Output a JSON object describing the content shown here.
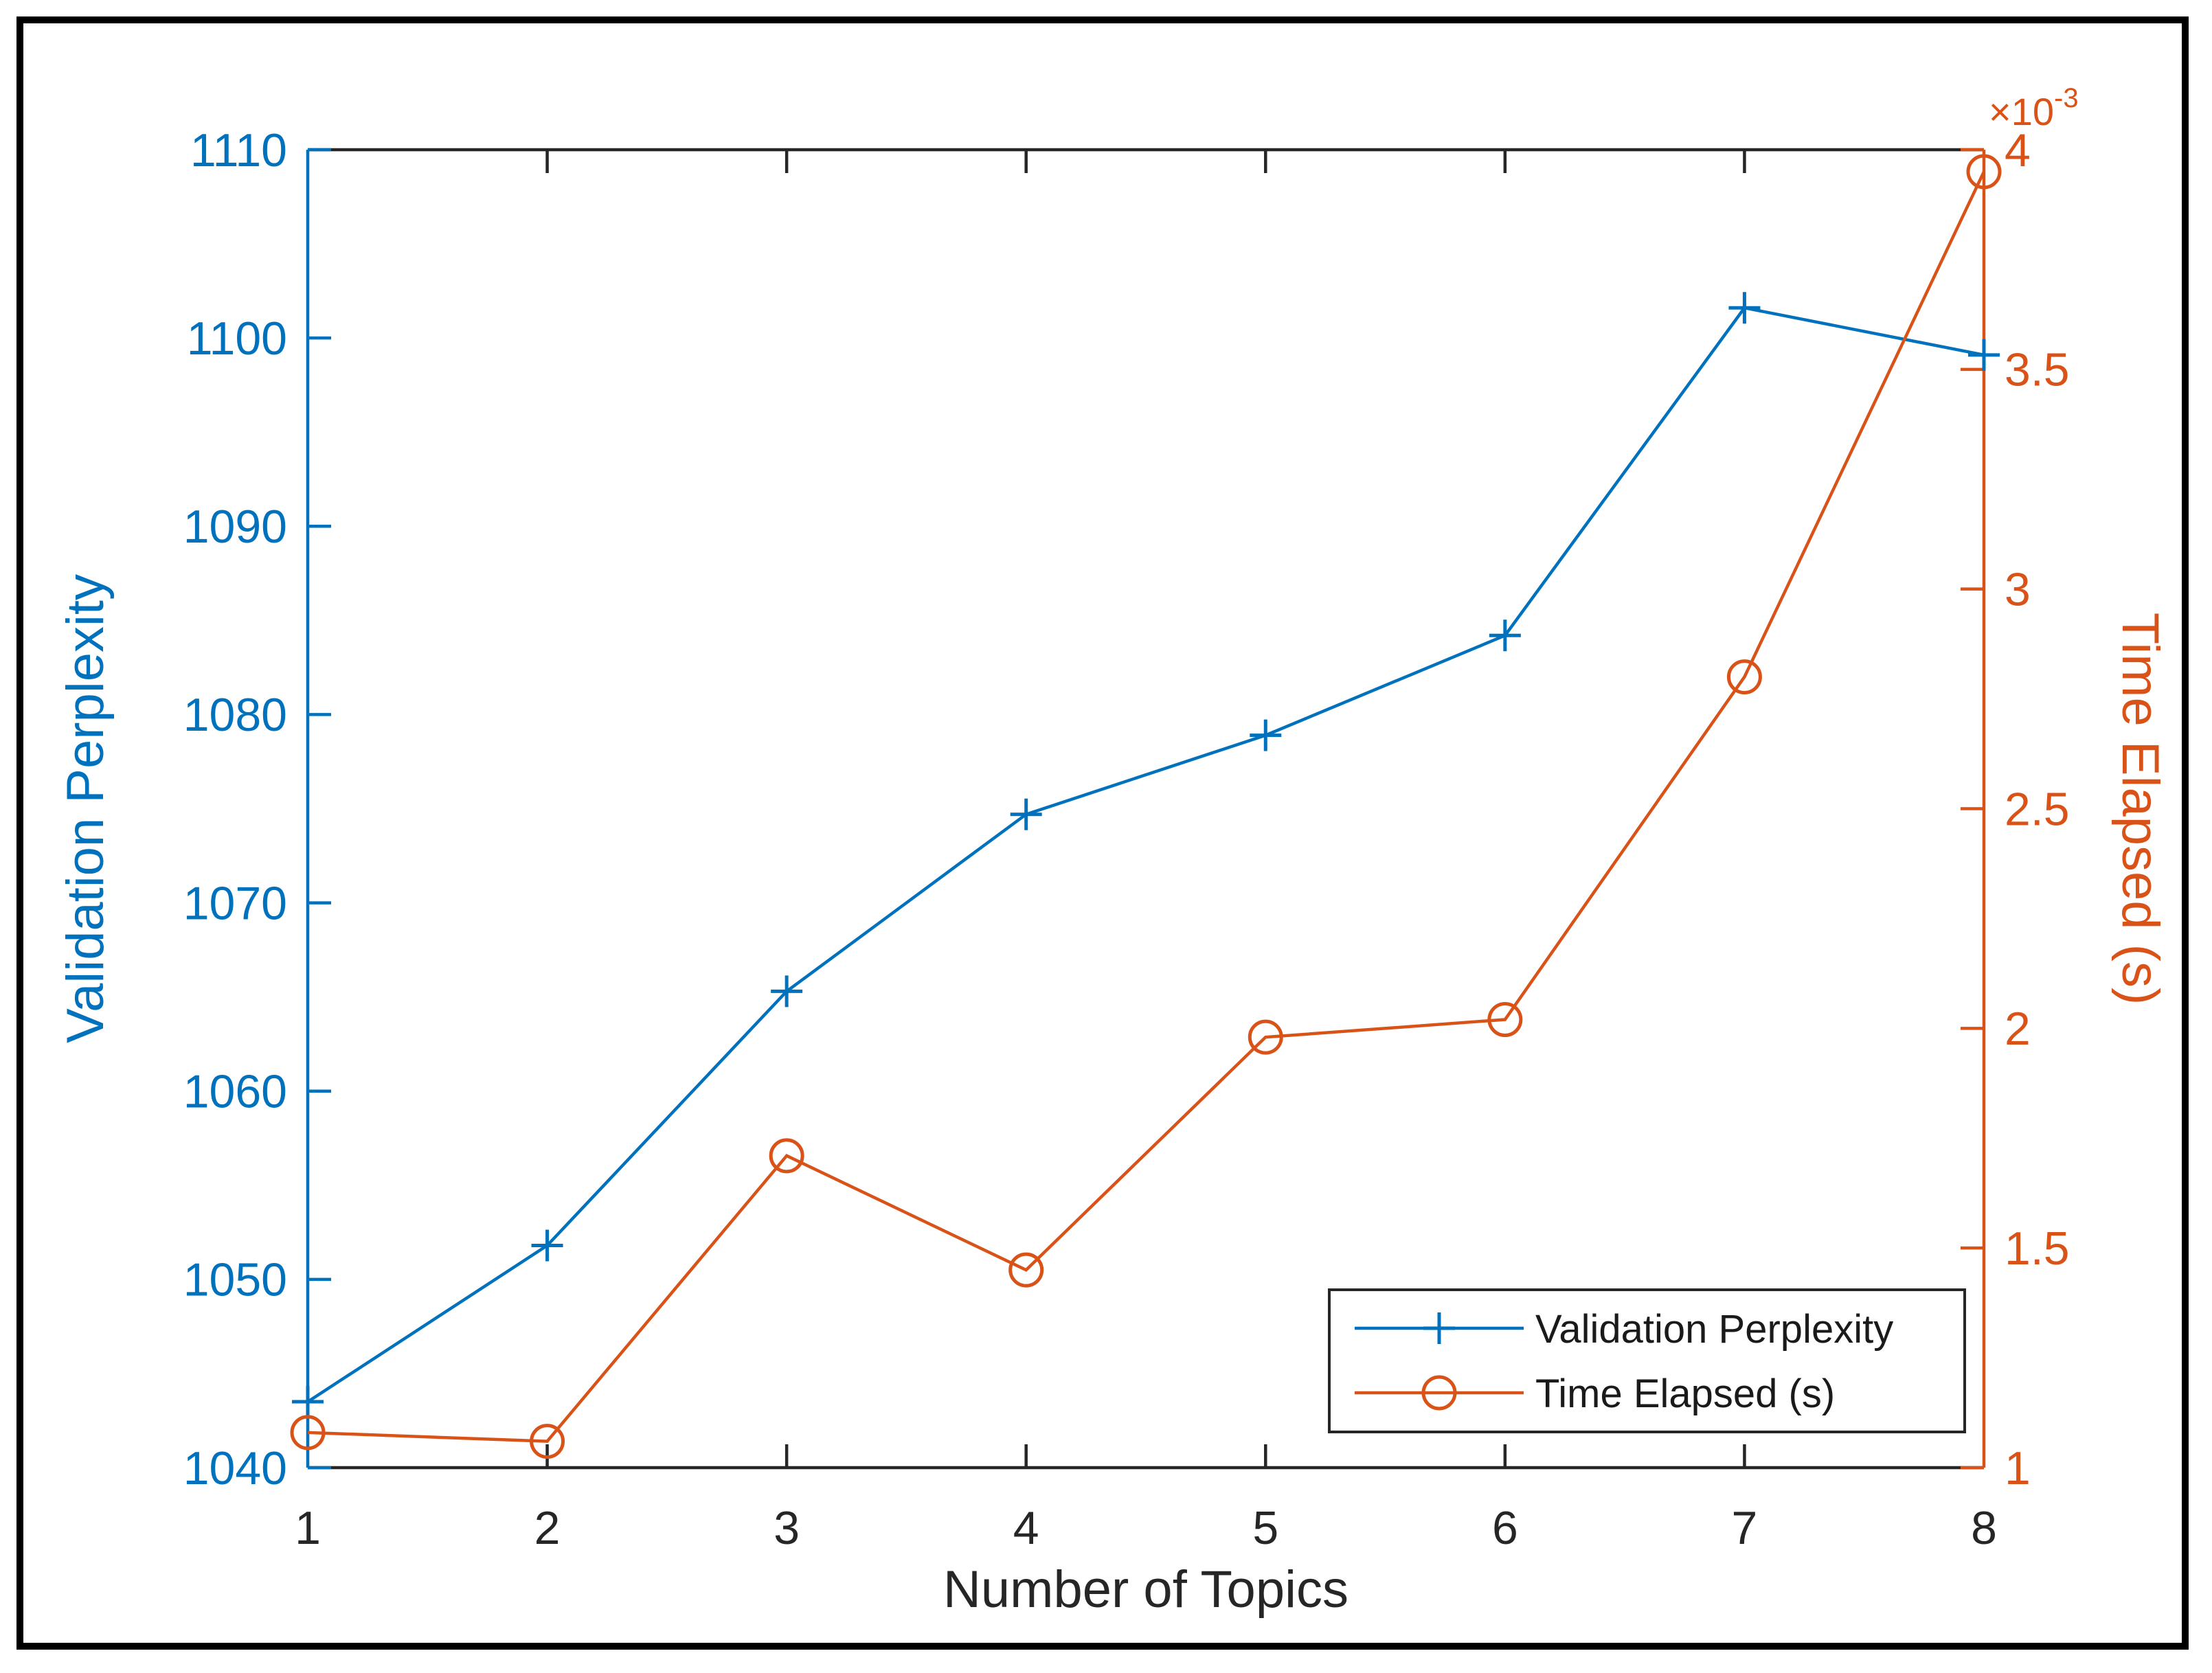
{
  "figure": {
    "background": "#ffffff",
    "frame_color": "#000000",
    "axis_line_color": "#262626",
    "axis_text_color": "#262626"
  },
  "chart_data": {
    "type": "line",
    "title": "",
    "xlabel": "Number of Topics",
    "x": [
      1,
      2,
      3,
      4,
      5,
      6,
      7,
      8
    ],
    "x_ticks": [
      "1",
      "2",
      "3",
      "4",
      "5",
      "6",
      "7",
      "8"
    ],
    "xlim": [
      1,
      8
    ],
    "grid": false,
    "axes": {
      "left": {
        "label": "Validation Perplexity",
        "color": "#0072BD",
        "lim": [
          1040,
          1110
        ],
        "ticks": [
          1040,
          1050,
          1060,
          1070,
          1080,
          1090,
          1100,
          1110
        ],
        "tick_labels": [
          "1040",
          "1050",
          "1060",
          "1070",
          "1080",
          "1090",
          "1100",
          "1110"
        ]
      },
      "right": {
        "label": "Time Elapsed (s)",
        "color": "#D95319",
        "lim": [
          1,
          4
        ],
        "ticks": [
          1,
          1.5,
          2,
          2.5,
          3,
          3.5,
          4
        ],
        "tick_labels": [
          "1",
          "1.5",
          "2",
          "2.5",
          "3",
          "3.5",
          "4"
        ],
        "multiplier_base": "×10",
        "multiplier_exponent": "-3"
      }
    },
    "series": [
      {
        "name": "Validation Perplexity",
        "axis": "left",
        "color": "#0072BD",
        "marker": "plus",
        "values": [
          1043.5,
          1051.8,
          1065.3,
          1074.7,
          1078.9,
          1084.2,
          1101.6,
          1099.1
        ]
      },
      {
        "name": "Time Elapsed (s)",
        "axis": "right",
        "color": "#D95319",
        "marker": "circle",
        "values": [
          1.08,
          1.06,
          1.71,
          1.45,
          1.98,
          2.02,
          2.8,
          3.95
        ]
      }
    ],
    "legend": {
      "position": "inside-bottom-right",
      "entries": [
        "Validation Perplexity",
        "Time Elapsed (s)"
      ]
    }
  }
}
